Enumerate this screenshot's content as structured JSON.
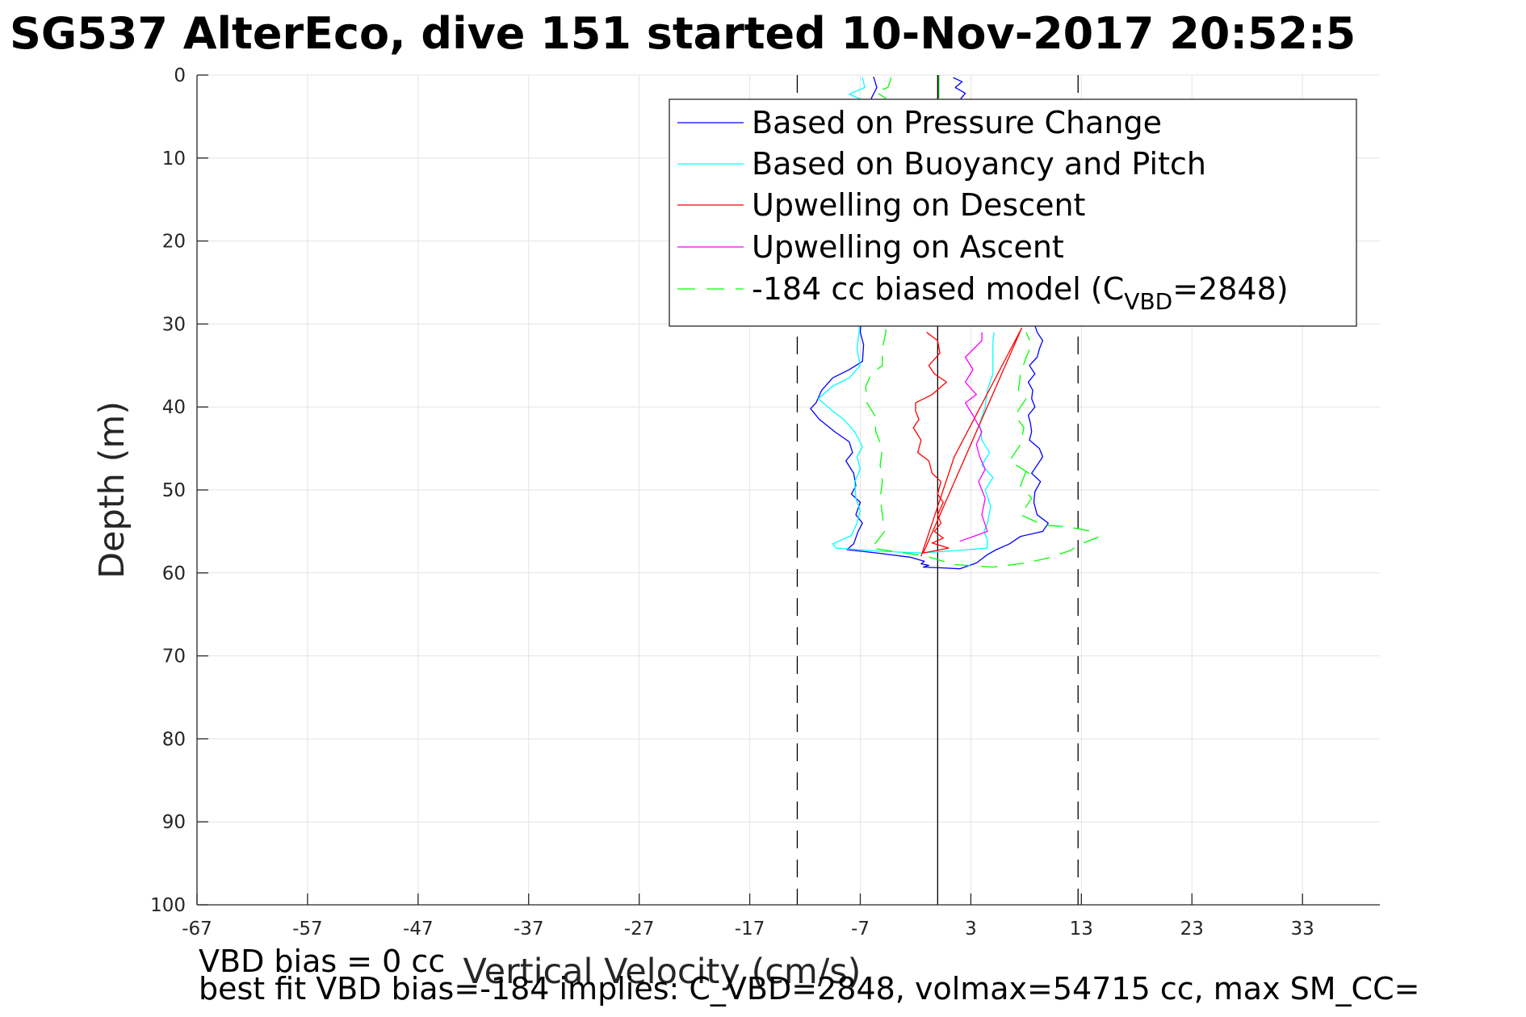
{
  "chart_data": {
    "type": "line",
    "title": "SG537 AlterEco, dive 151 started 10-Nov-2017 20:52:5",
    "xlabel": "Vertical Velocity (cm/s)",
    "ylabel": "Depth (m)",
    "xlim": [
      -67,
      40
    ],
    "ylim": [
      0,
      100
    ],
    "y_reversed": true,
    "grid": true,
    "legend_position": "top-right",
    "xticks": [
      -67,
      -57,
      -47,
      -37,
      -27,
      -17,
      -7,
      3,
      13,
      23,
      33
    ],
    "yticks": [
      0,
      10,
      20,
      30,
      40,
      50,
      60,
      70,
      80,
      90,
      100
    ],
    "reference_lines": [
      {
        "x": 0,
        "style": "solid",
        "color": "#000000"
      },
      {
        "x": -12.7,
        "style": "dashed",
        "color": "#000000"
      },
      {
        "x": 12.7,
        "style": "dashed",
        "color": "#000000"
      }
    ],
    "series": [
      {
        "name": "Based on Pressure Change",
        "color": "#0000ff",
        "style": "solid",
        "points": [
          [
            -5.8,
            0.2
          ],
          [
            -5.5,
            1.5
          ],
          [
            -6.0,
            2.8
          ],
          [
            -5.6,
            3.8
          ],
          [
            -7.0,
            31
          ],
          [
            -6.7,
            32.5
          ],
          [
            -6.8,
            34.5
          ],
          [
            -8.0,
            35.5
          ],
          [
            -9.5,
            36.5
          ],
          [
            -10.5,
            38
          ],
          [
            -11.0,
            39.5
          ],
          [
            -11.5,
            40.2
          ],
          [
            -10.7,
            41.5
          ],
          [
            -9.3,
            43
          ],
          [
            -8.0,
            44.2
          ],
          [
            -7.7,
            45.5
          ],
          [
            -8.3,
            46.5
          ],
          [
            -7.6,
            48
          ],
          [
            -7.4,
            49.5
          ],
          [
            -7.8,
            50.5
          ],
          [
            -7.0,
            51.5
          ],
          [
            -7.4,
            53
          ],
          [
            -6.8,
            54
          ],
          [
            -7.2,
            55
          ],
          [
            -7.6,
            56.5
          ],
          [
            -8.2,
            57.2
          ],
          [
            -5.5,
            57.6
          ],
          [
            -2.5,
            58.1
          ],
          [
            -1.2,
            58.6
          ],
          [
            -1.5,
            58.9
          ],
          [
            -0.8,
            59.1
          ],
          [
            -1.3,
            59.3
          ],
          [
            0.5,
            59.4
          ],
          [
            2.0,
            59.5
          ],
          [
            3.5,
            58.8
          ],
          [
            4.5,
            57.8
          ],
          [
            5.3,
            57.2
          ],
          [
            6.5,
            56.5
          ],
          [
            7.5,
            55.6
          ],
          [
            9.5,
            55.0
          ],
          [
            10.0,
            54.0
          ],
          [
            9.0,
            53.0
          ],
          [
            8.7,
            51.5
          ],
          [
            8.8,
            50.2
          ],
          [
            9.3,
            49.0
          ],
          [
            8.5,
            48.0
          ],
          [
            9.0,
            47.0
          ],
          [
            9.5,
            46.0
          ],
          [
            9.2,
            45.0
          ],
          [
            8.3,
            44.0
          ],
          [
            8.5,
            43.0
          ],
          [
            8.4,
            42.0
          ],
          [
            8.2,
            41.0
          ],
          [
            8.8,
            40.0
          ],
          [
            8.5,
            39.0
          ],
          [
            8.6,
            38.0
          ],
          [
            8.2,
            37.0
          ],
          [
            8.8,
            36.0
          ],
          [
            8.3,
            35.0
          ],
          [
            9.0,
            34.0
          ],
          [
            9.2,
            33.0
          ],
          [
            9.5,
            32.0
          ],
          [
            9.0,
            31.0
          ],
          [
            2.0,
            3.0
          ],
          [
            2.5,
            2.2
          ],
          [
            1.6,
            1.5
          ],
          [
            2.2,
            0.8
          ],
          [
            1.4,
            0.3
          ]
        ]
      },
      {
        "name": "Based on Buoyancy and Pitch",
        "color": "#00ffff",
        "style": "solid",
        "points": [
          [
            -6.8,
            0.3
          ],
          [
            -6.6,
            1.5
          ],
          [
            -8.0,
            2.3
          ],
          [
            -6.8,
            3.0
          ],
          [
            -7.0,
            3.8
          ],
          [
            -7.1,
            31
          ],
          [
            -7.3,
            33.0
          ],
          [
            -7.0,
            35.0
          ],
          [
            -8.0,
            36.5
          ],
          [
            -9.5,
            37.5
          ],
          [
            -10.8,
            39.0
          ],
          [
            -9.5,
            40.5
          ],
          [
            -8.5,
            41.5
          ],
          [
            -7.5,
            43.0
          ],
          [
            -6.8,
            44.8
          ],
          [
            -7.3,
            46.0
          ],
          [
            -7.0,
            47.5
          ],
          [
            -7.5,
            49.0
          ],
          [
            -7.4,
            51.0
          ],
          [
            -7.0,
            52.5
          ],
          [
            -7.3,
            54.0
          ],
          [
            -7.8,
            55.5
          ],
          [
            -9.5,
            56.5
          ],
          [
            -9.2,
            57.0
          ],
          [
            -5.0,
            57.4
          ],
          [
            -1.5,
            57.6
          ],
          [
            1.8,
            57.3
          ],
          [
            4.5,
            57.0
          ],
          [
            4.5,
            56.0
          ],
          [
            4.2,
            55.0
          ],
          [
            4.5,
            54.0
          ],
          [
            4.8,
            52.0
          ],
          [
            4.3,
            50.0
          ],
          [
            5.0,
            48.5
          ],
          [
            4.0,
            47.0
          ],
          [
            4.7,
            45.5
          ],
          [
            4.0,
            44.0
          ],
          [
            3.8,
            42.0
          ],
          [
            4.3,
            40.0
          ],
          [
            4.5,
            38.0
          ],
          [
            5.0,
            36.0
          ],
          [
            5.0,
            34.0
          ],
          [
            5.0,
            32.0
          ],
          [
            5.1,
            31.0
          ]
        ]
      },
      {
        "name": "Upwelling on Descent",
        "color": "#ff0000",
        "style": "solid",
        "points": [
          [
            -1.0,
            31
          ],
          [
            0.0,
            32.0
          ],
          [
            0.2,
            33.5
          ],
          [
            -0.8,
            35.0
          ],
          [
            -0.3,
            36.0
          ],
          [
            0.8,
            37.0
          ],
          [
            -0.5,
            38.5
          ],
          [
            -2.0,
            39.5
          ],
          [
            -2.0,
            40.5
          ],
          [
            -1.7,
            41.5
          ],
          [
            -2.2,
            42.5
          ],
          [
            -1.5,
            44.0
          ],
          [
            -1.8,
            45.5
          ],
          [
            -0.8,
            46.5
          ],
          [
            -0.5,
            48.0
          ],
          [
            0.3,
            49.0
          ],
          [
            0.0,
            50.5
          ],
          [
            0.5,
            51.5
          ],
          [
            0.0,
            53.0
          ],
          [
            0.3,
            54.0
          ],
          [
            -0.3,
            55.0
          ],
          [
            0.5,
            55.8
          ],
          [
            -0.5,
            56.4
          ],
          [
            1.0,
            57.0
          ],
          [
            -1.3,
            57.6
          ],
          [
            7.6,
            30.5
          ],
          [
            1.5,
            46.0
          ],
          [
            -1.5,
            58.0
          ]
        ]
      },
      {
        "name": "Upwelling on Ascent",
        "color": "#ff00ff",
        "style": "solid",
        "points": [
          [
            2.0,
            56.2
          ],
          [
            4.5,
            55.0
          ],
          [
            4.0,
            53.0
          ],
          [
            4.3,
            51.0
          ],
          [
            3.7,
            49.0
          ],
          [
            4.3,
            47.5
          ],
          [
            3.8,
            46.0
          ],
          [
            3.5,
            44.5
          ],
          [
            4.0,
            43.0
          ],
          [
            3.2,
            41.0
          ],
          [
            2.5,
            39.5
          ],
          [
            3.5,
            38.5
          ],
          [
            2.5,
            37.0
          ],
          [
            3.2,
            35.5
          ],
          [
            2.5,
            34.0
          ],
          [
            4.0,
            32.0
          ],
          [
            4.0,
            31.0
          ]
        ]
      },
      {
        "name": "-184 cc biased model (C_VBD=2848)",
        "color": "#00ff00",
        "style": "dashed",
        "points": [
          [
            -4.2,
            0.3
          ],
          [
            -4.5,
            1.5
          ],
          [
            -5.6,
            2.0
          ],
          [
            -4.7,
            2.8
          ],
          [
            -4.7,
            31
          ],
          [
            -5.0,
            33.0
          ],
          [
            -5.0,
            35.0
          ],
          [
            -6.0,
            36.0
          ],
          [
            -6.5,
            37.5
          ],
          [
            -6.4,
            39.5
          ],
          [
            -5.7,
            41.0
          ],
          [
            -5.6,
            43.0
          ],
          [
            -5.0,
            45.0
          ],
          [
            -5.2,
            47.0
          ],
          [
            -5.0,
            49.0
          ],
          [
            -5.2,
            51.0
          ],
          [
            -5.0,
            53.0
          ],
          [
            -4.8,
            55.0
          ],
          [
            -5.5,
            56.2
          ],
          [
            -6.0,
            57.0
          ],
          [
            -1.0,
            58.0
          ],
          [
            1.5,
            59.0
          ],
          [
            5.0,
            59.3
          ],
          [
            8.0,
            58.8
          ],
          [
            10.0,
            58.2
          ],
          [
            12.0,
            57.3
          ],
          [
            13.0,
            56.5
          ],
          [
            14.5,
            55.7
          ],
          [
            14.0,
            55.0
          ],
          [
            12.0,
            54.5
          ],
          [
            9.5,
            54.2
          ],
          [
            7.5,
            53.0
          ],
          [
            8.5,
            51.0
          ],
          [
            7.5,
            49.5
          ],
          [
            8.0,
            47.7
          ],
          [
            8.5,
            48.2
          ],
          [
            6.5,
            46.5
          ],
          [
            7.5,
            44.5
          ],
          [
            7.8,
            42.5
          ],
          [
            7.0,
            41.0
          ],
          [
            7.5,
            40.0
          ],
          [
            8.0,
            39.0
          ],
          [
            7.3,
            38.0
          ],
          [
            7.5,
            36.0
          ],
          [
            8.0,
            34.0
          ],
          [
            8.5,
            32.5
          ],
          [
            8.0,
            31.0
          ]
        ]
      },
      {
        "name": "model-top-segment",
        "color": "#00aa00",
        "style": "solid",
        "legend": false,
        "points": [
          [
            0.1,
            0.0
          ],
          [
            0.1,
            2.8
          ]
        ]
      }
    ],
    "legend_label_parts": {
      "before": "-184 cc biased model (C",
      "sub": "VBD",
      "after": "=2848)"
    }
  },
  "notes": {
    "line1": "VBD bias = 0 cc",
    "line2": "best fit VBD bias=-184 implies: C_VBD=2848, volmax=54715 cc, max SM_CC="
  },
  "legend_labels": [
    "Based on Pressure Change",
    "Based on Buoyancy and Pitch",
    "Upwelling on Descent",
    "Upwelling on Ascent"
  ]
}
